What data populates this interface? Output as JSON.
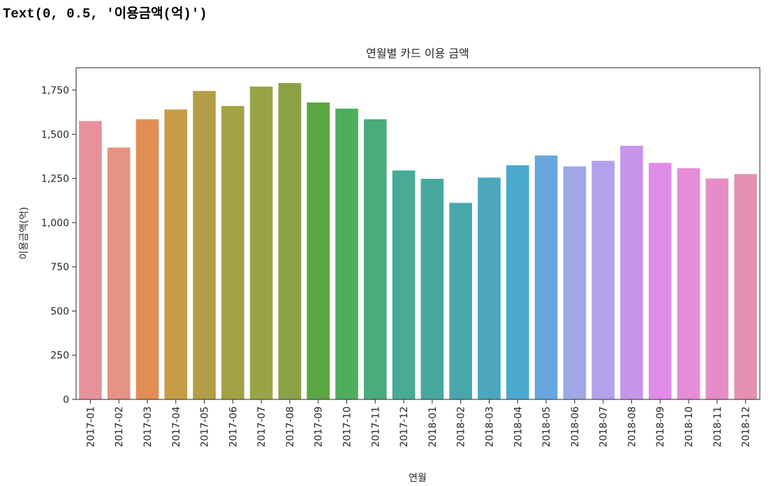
{
  "output": {
    "text": "Text(0, 0.5, '이용금액(억)')"
  },
  "chart_data": {
    "type": "bar",
    "title": "연월별 카드 이용 금액",
    "xlabel": "연월",
    "ylabel": "이용금액(억)",
    "ylim": [
      0,
      1800
    ],
    "yticks": [
      0,
      250,
      500,
      750,
      1000,
      1250,
      1500,
      1750
    ],
    "ytick_labels": [
      "0",
      "250",
      "500",
      "750",
      "1,000",
      "1,250",
      "1,500",
      "1,750"
    ],
    "grid": false,
    "legend": "none",
    "categories": [
      "2017-01",
      "2017-02",
      "2017-03",
      "2017-04",
      "2017-05",
      "2017-06",
      "2017-07",
      "2017-08",
      "2017-09",
      "2017-10",
      "2017-11",
      "2017-12",
      "2018-01",
      "2018-02",
      "2018-03",
      "2018-04",
      "2018-05",
      "2018-06",
      "2018-07",
      "2018-08",
      "2018-09",
      "2018-10",
      "2018-11",
      "2018-12"
    ],
    "values": [
      1575,
      1425,
      1585,
      1640,
      1745,
      1660,
      1770,
      1790,
      1680,
      1645,
      1585,
      1295,
      1248,
      1112,
      1255,
      1325,
      1380,
      1318,
      1350,
      1435,
      1338,
      1308,
      1250,
      1275
    ],
    "colors": [
      "#e8919a",
      "#e69384",
      "#e08e51",
      "#c79b45",
      "#b39d46",
      "#a3a243",
      "#98a447",
      "#8aa245",
      "#5aa744",
      "#4eae5c",
      "#4aab7c",
      "#47ab96",
      "#48a8a0",
      "#47a7ad",
      "#4aa7bd",
      "#4aa9cf",
      "#66a7e0",
      "#9ea8e6",
      "#b4a1eb",
      "#c895e8",
      "#e08be6",
      "#e68bd8",
      "#e68dc7",
      "#e591b2"
    ]
  }
}
